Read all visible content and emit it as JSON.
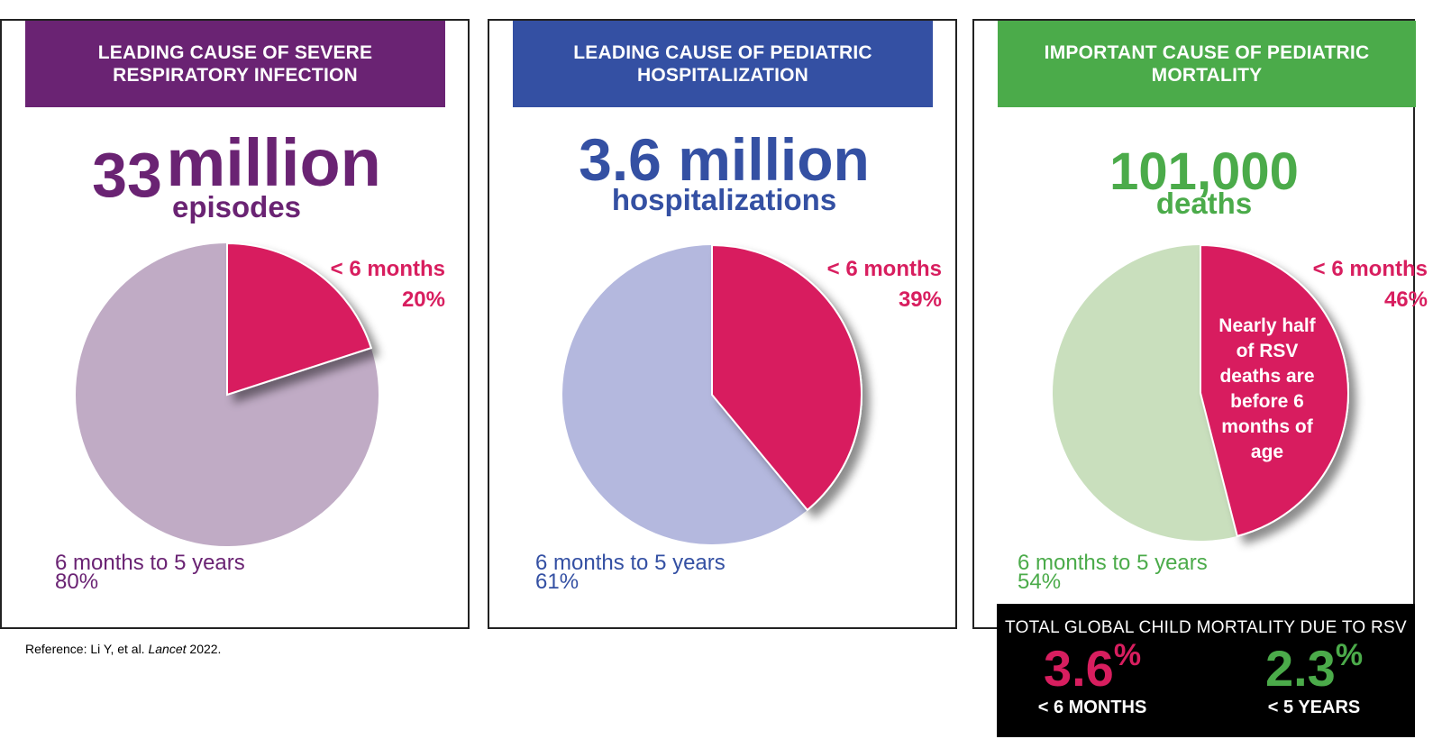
{
  "colors": {
    "purple": "#6a2373",
    "blue": "#3450a3",
    "green": "#4bab4a",
    "pink": "#d81e5f",
    "purple_light": "#c0abc5",
    "blue_light": "#b4b8de",
    "green_light": "#c9dfbd"
  },
  "panels": [
    {
      "banner_line1": "LEADING CAUSE OF SEVERE",
      "banner_line2": "RESPIRATORY INFECTION",
      "big_number_a": "33",
      "big_number_b": "million",
      "unit": "episodes"
    },
    {
      "banner_line1": "LEADING CAUSE OF PEDIATRIC",
      "banner_line2": "HOSPITALIZATION",
      "big_number": "3.6 million",
      "unit": "hospitalizations"
    },
    {
      "banner_line1": "IMPORTANT CAUSE OF PEDIATRIC",
      "banner_line2": "MORTALITY",
      "big_number": "101,000",
      "unit": "deaths",
      "note": [
        "Nearly half",
        "of RSV",
        "deaths are",
        "before  6",
        "months of",
        "age"
      ]
    }
  ],
  "chart_data": [
    {
      "type": "pie",
      "title": "33 million episodes",
      "slices": [
        {
          "label": "< 6 months",
          "value": 20,
          "value_label": "20%"
        },
        {
          "label": "6 months to 5 years",
          "value": 80,
          "value_label": "80%"
        }
      ]
    },
    {
      "type": "pie",
      "title": "3.6 million hospitalizations",
      "slices": [
        {
          "label": "< 6 months",
          "value": 39,
          "value_label": "39%"
        },
        {
          "label": "6 months to 5 years",
          "value": 61,
          "value_label": "61%"
        }
      ]
    },
    {
      "type": "pie",
      "title": "101,000 deaths",
      "slices": [
        {
          "label": "< 6 months",
          "value": 46,
          "value_label": "46%"
        },
        {
          "label": "6 months to 5 years",
          "value": 54,
          "value_label": "54%"
        }
      ]
    }
  ],
  "total_box": {
    "title": "TOTAL GLOBAL CHILD MORTALITY DUE TO RSV",
    "left_value": "3.6",
    "left_pct": "%",
    "left_caption": "< 6 MONTHS",
    "right_value": "2.3",
    "right_pct": "%",
    "right_caption": "< 5 YEARS"
  },
  "reference": {
    "prefix": "Reference:   Li Y, et al. ",
    "journal": "Lancet",
    "year": " 2022."
  }
}
